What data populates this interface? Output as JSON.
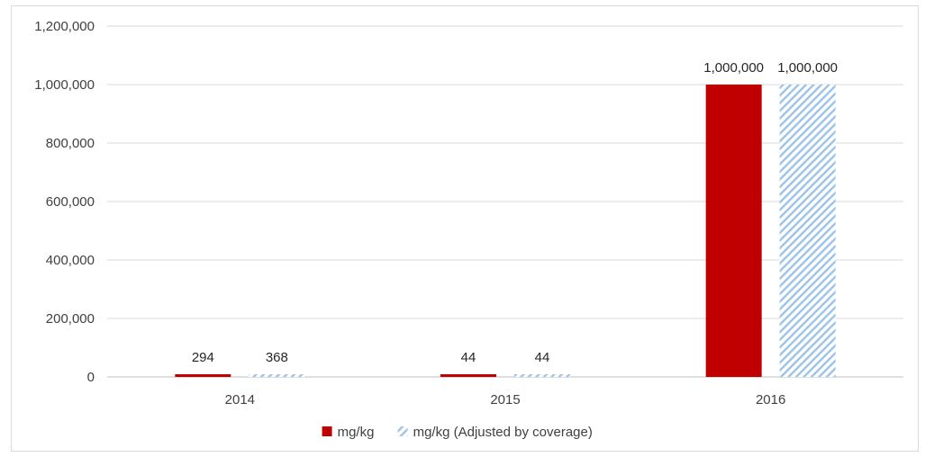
{
  "chart_data": {
    "type": "bar",
    "categories": [
      "2014",
      "2015",
      "2016"
    ],
    "series": [
      {
        "name": "mg/kg",
        "values": [
          294,
          44,
          1000000
        ],
        "labels": [
          "294",
          "44",
          "1,000,000"
        ],
        "color": "#c00000",
        "pattern": "solid"
      },
      {
        "name": "mg/kg (Adjusted by coverage)",
        "values": [
          368,
          44,
          1000000
        ],
        "labels": [
          "368",
          "44",
          "1,000,000"
        ],
        "color": "#9dc3e6",
        "pattern": "diagonal-hatch"
      }
    ],
    "ylim": [
      0,
      1200000
    ],
    "yticks": [
      0,
      200000,
      400000,
      600000,
      800000,
      1000000,
      1200000
    ],
    "ytick_labels": [
      "0",
      "200,000",
      "400,000",
      "600,000",
      "800,000",
      "1,000,000",
      "1,200,000"
    ],
    "title": "",
    "xlabel": "",
    "ylabel": "",
    "grid": true,
    "legend_position": "bottom"
  }
}
